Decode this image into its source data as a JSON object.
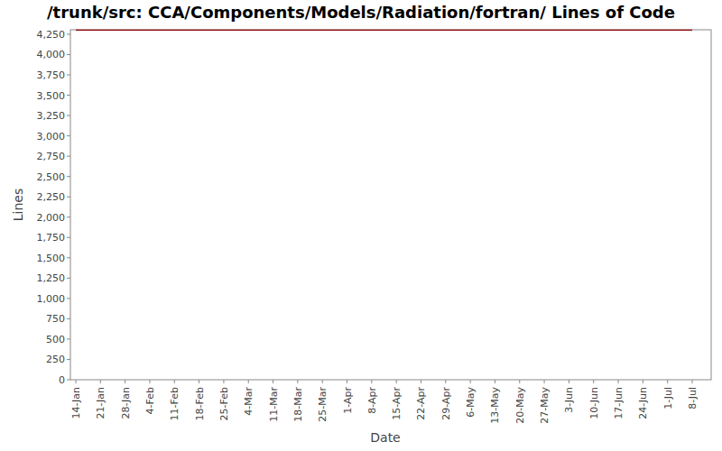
{
  "chart_data": {
    "type": "line",
    "title": "/trunk/src: CCA/Components/Models/Radiation/fortran/ Lines of Code",
    "x_label": "Date",
    "y_label": "Lines",
    "categories": [
      "14-Jan",
      "21-Jan",
      "28-Jan",
      "4-Feb",
      "11-Feb",
      "18-Feb",
      "25-Feb",
      "4-Mar",
      "11-Mar",
      "18-Mar",
      "25-Mar",
      "1-Apr",
      "8-Apr",
      "15-Apr",
      "22-Apr",
      "29-Apr",
      "6-May",
      "13-May",
      "20-May",
      "27-May",
      "3-Jun",
      "10-Jun",
      "17-Jun",
      "24-Jun",
      "1-Jul",
      "8-Jul"
    ],
    "values": [
      4300,
      4300,
      4300,
      4300,
      4300,
      4300,
      4300,
      4300,
      4300,
      4300,
      4300,
      4300,
      4300,
      4300,
      4300,
      4300,
      4300,
      4300,
      4300,
      4300,
      4300,
      4300,
      4300,
      4300,
      4300,
      4300
    ],
    "color": "#8b0000",
    "ylim": [
      0,
      4305
    ],
    "yticks": [
      0,
      250,
      500,
      750,
      {
        "value": 1000,
        "label": "1,000"
      },
      {
        "value": 1250,
        "label": "1,250"
      },
      {
        "value": 1500,
        "label": "1,500"
      },
      {
        "value": 1750,
        "label": "1,750"
      },
      {
        "value": 2000,
        "label": "2,000"
      },
      {
        "value": 2250,
        "label": "2,250"
      },
      {
        "value": 2500,
        "label": "2,500"
      },
      {
        "value": 2750,
        "label": "2,750"
      },
      {
        "value": 3000,
        "label": "3,000"
      },
      {
        "value": 3250,
        "label": "3,250"
      },
      {
        "value": 3500,
        "label": "3,500"
      },
      {
        "value": 3750,
        "label": "3,750"
      },
      {
        "value": 4000,
        "label": "4,000"
      },
      {
        "value": 4250,
        "label": "4,250"
      }
    ],
    "grid": false
  }
}
